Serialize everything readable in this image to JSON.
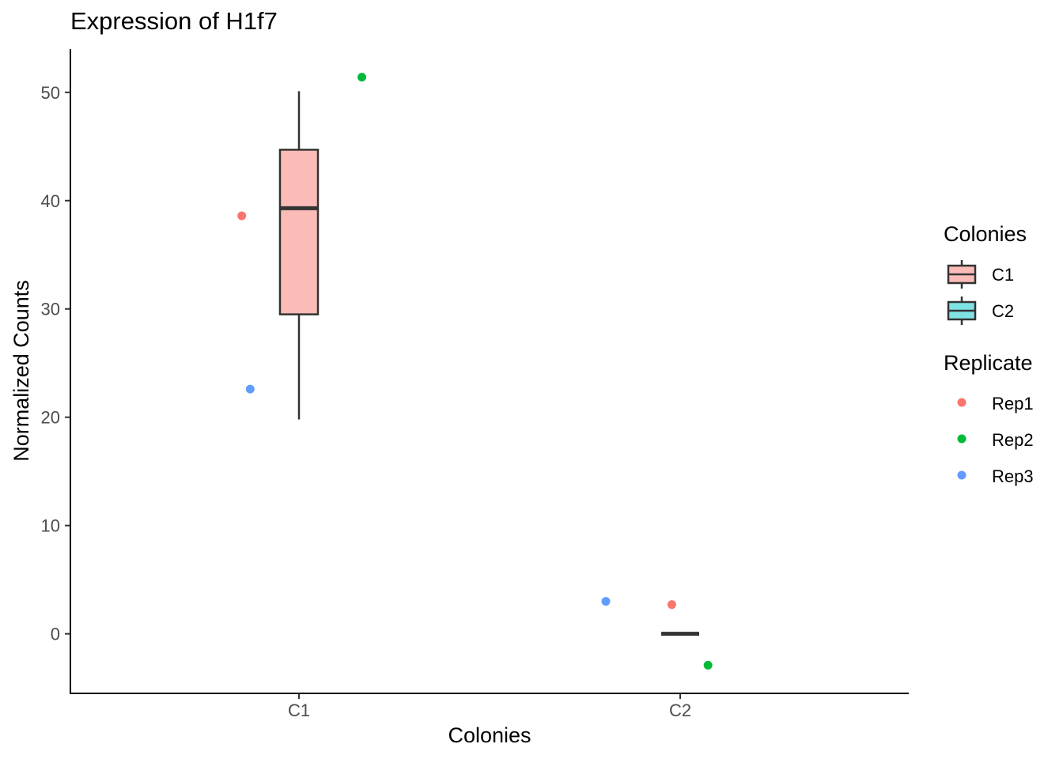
{
  "chart_data": {
    "type": "box",
    "title": "Expression of H1f7",
    "xlabel": "Colonies",
    "ylabel": "Normalized Counts",
    "categories": [
      "C1",
      "C2"
    ],
    "ylim": [
      -5.5,
      54
    ],
    "yticks": [
      0,
      10,
      20,
      30,
      40,
      50
    ],
    "grid": false,
    "boxes": [
      {
        "category": "C1",
        "fill": "#fbbcb8",
        "whisker_low": 19.8,
        "q1": 29.5,
        "median": 39.3,
        "q3": 44.7,
        "whisker_high": 50.1
      },
      {
        "category": "C2",
        "fill": "#7fe2e3",
        "whisker_low": 0.0,
        "q1": 0.0,
        "median": 0.0,
        "q3": 0.0,
        "whisker_high": 0.0
      }
    ],
    "points": [
      {
        "category": "C1",
        "replicate": "Rep1",
        "x_jitter": -0.15,
        "y": 38.6
      },
      {
        "category": "C1",
        "replicate": "Rep2",
        "x_jitter": 0.165,
        "y": 51.4
      },
      {
        "category": "C1",
        "replicate": "Rep3",
        "x_jitter": -0.128,
        "y": 22.6
      },
      {
        "category": "C2",
        "replicate": "Rep3",
        "x_jitter": -0.195,
        "y": 3.0
      },
      {
        "category": "C2",
        "replicate": "Rep1",
        "x_jitter": -0.022,
        "y": 2.7
      },
      {
        "category": "C2",
        "replicate": "Rep2",
        "x_jitter": 0.073,
        "y": -2.9
      }
    ],
    "legends": [
      {
        "title": "Colonies",
        "kind": "box",
        "entries": [
          {
            "label": "C1",
            "color": "#fbbcb8"
          },
          {
            "label": "C2",
            "color": "#7fe2e3"
          }
        ]
      },
      {
        "title": "Replicate",
        "kind": "point",
        "entries": [
          {
            "label": "Rep1",
            "color": "#f8766d"
          },
          {
            "label": "Rep2",
            "color": "#00ba38"
          },
          {
            "label": "Rep3",
            "color": "#619cff"
          }
        ]
      }
    ],
    "legend_position": "right"
  }
}
